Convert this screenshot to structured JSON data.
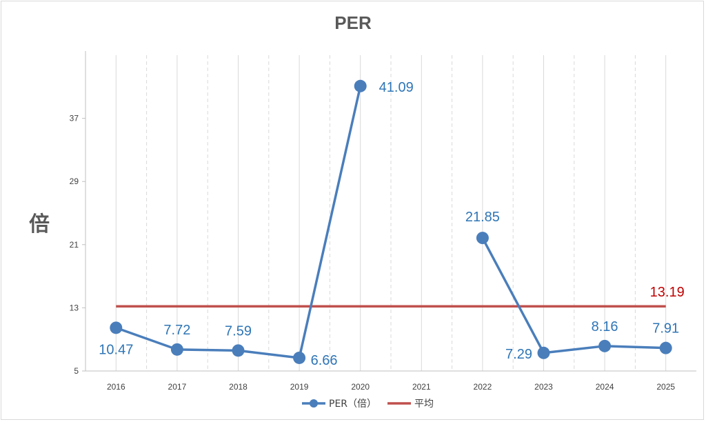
{
  "chart_data": {
    "type": "line",
    "title": "PER",
    "ylabel": "倍",
    "xlabel": "",
    "categories": [
      "2016",
      "2017",
      "2018",
      "2019",
      "2020",
      "2021",
      "2022",
      "2023",
      "2024",
      "2025"
    ],
    "yticks": [
      "5",
      "13",
      "21",
      "29",
      "37"
    ],
    "ylim": [
      5,
      45
    ],
    "grid": "vertical-dashed",
    "legend_position": "bottom",
    "series": [
      {
        "name": "PER（倍）",
        "color": "#4a7ebb",
        "values": [
          10.47,
          7.72,
          7.59,
          6.66,
          41.09,
          null,
          21.85,
          7.29,
          8.16,
          7.91
        ],
        "labels": [
          "10.47",
          "7.72",
          "7.59",
          "6.66",
          "41.09",
          "",
          "21.85",
          "7.29",
          "8.16",
          "7.91"
        ]
      },
      {
        "name": "平均",
        "color": "#c0504d",
        "value": 13.19,
        "label": "13.19"
      }
    ]
  }
}
